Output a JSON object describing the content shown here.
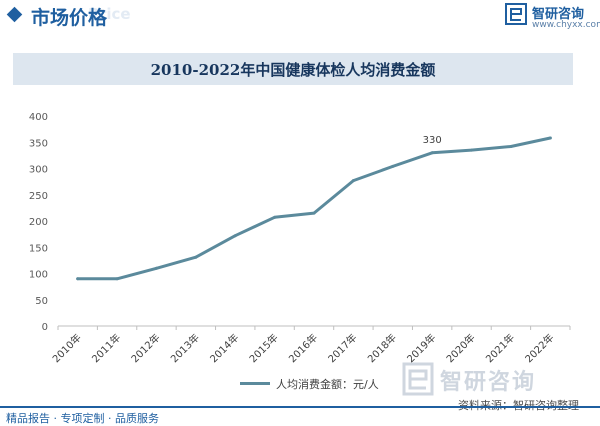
{
  "header": {
    "title": "市场价格",
    "ghost": "Price"
  },
  "brand": {
    "name": "智研咨询",
    "url": "www.chyxx.com"
  },
  "chart_data": {
    "type": "line",
    "title": "2010-2022年中国健康体检人均消费金额",
    "categories": [
      "2010年",
      "2011年",
      "2012年",
      "2013年",
      "2014年",
      "2015年",
      "2016年",
      "2017年",
      "2018年",
      "2019年",
      "2020年",
      "2021年",
      "2022年"
    ],
    "series": [
      {
        "name": "人均消费金额：元/人",
        "values": [
          90,
          90,
          110,
          131,
          172,
          207,
          215,
          277,
          304,
          330,
          335,
          342,
          358
        ]
      }
    ],
    "ylim": [
      0,
      400
    ],
    "yticks": [
      0,
      50,
      100,
      150,
      200,
      250,
      300,
      350,
      400
    ],
    "annotations": [
      {
        "category": "2019年",
        "text": "330"
      }
    ],
    "legend": "bottom",
    "grid": false,
    "line_color": "#5b8a9c"
  },
  "watermark": {
    "text": "智研咨询"
  },
  "source": "资料来源：智研咨询整理",
  "footer": "精品报告 · 专项定制 · 品质服务"
}
